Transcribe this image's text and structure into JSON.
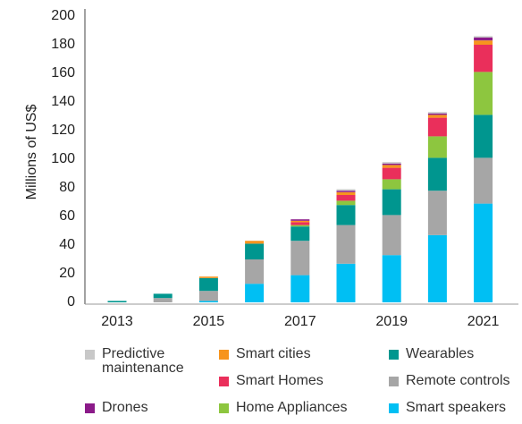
{
  "chart_data": {
    "type": "bar",
    "stacked": true,
    "y_label": "Millions of US$",
    "categories": [
      "2013",
      null,
      "2015",
      null,
      "2017",
      null,
      "2019",
      null,
      "2021"
    ],
    "ylim": [
      0,
      200
    ],
    "yticks": [
      0,
      20,
      40,
      60,
      80,
      100,
      120,
      140,
      160,
      180,
      200
    ],
    "series": [
      {
        "name": "Smart speakers",
        "color": "#00bff3",
        "values": [
          0,
          0,
          1,
          13,
          19,
          27,
          33,
          47,
          69
        ]
      },
      {
        "name": "Remote controls",
        "color": "#a6a6a6",
        "values": [
          0,
          3,
          7,
          17,
          24,
          27,
          28,
          31,
          32
        ]
      },
      {
        "name": "Wearables",
        "color": "#00968f",
        "values": [
          1,
          3,
          9,
          11,
          10,
          14,
          18,
          23,
          30
        ]
      },
      {
        "name": "Home Appliances",
        "color": "#8dc63f",
        "values": [
          0,
          0,
          0,
          0,
          1,
          3,
          7,
          15,
          30
        ]
      },
      {
        "name": "Smart Homes",
        "color": "#ea2f5b",
        "values": [
          0,
          0,
          0,
          0,
          2,
          4,
          8,
          13,
          19
        ]
      },
      {
        "name": "Smart cities",
        "color": "#f7941d",
        "values": [
          0,
          0,
          1,
          2,
          1,
          2,
          2,
          2,
          3
        ]
      },
      {
        "name": "Drones",
        "color": "#8b1a89",
        "values": [
          0,
          0,
          0,
          0,
          1,
          1,
          1,
          1,
          2
        ]
      },
      {
        "name": "Predictive maintenance",
        "color": "#c8c8c8",
        "values": [
          0,
          0,
          0,
          0,
          0,
          1,
          1,
          1,
          1
        ]
      }
    ]
  }
}
